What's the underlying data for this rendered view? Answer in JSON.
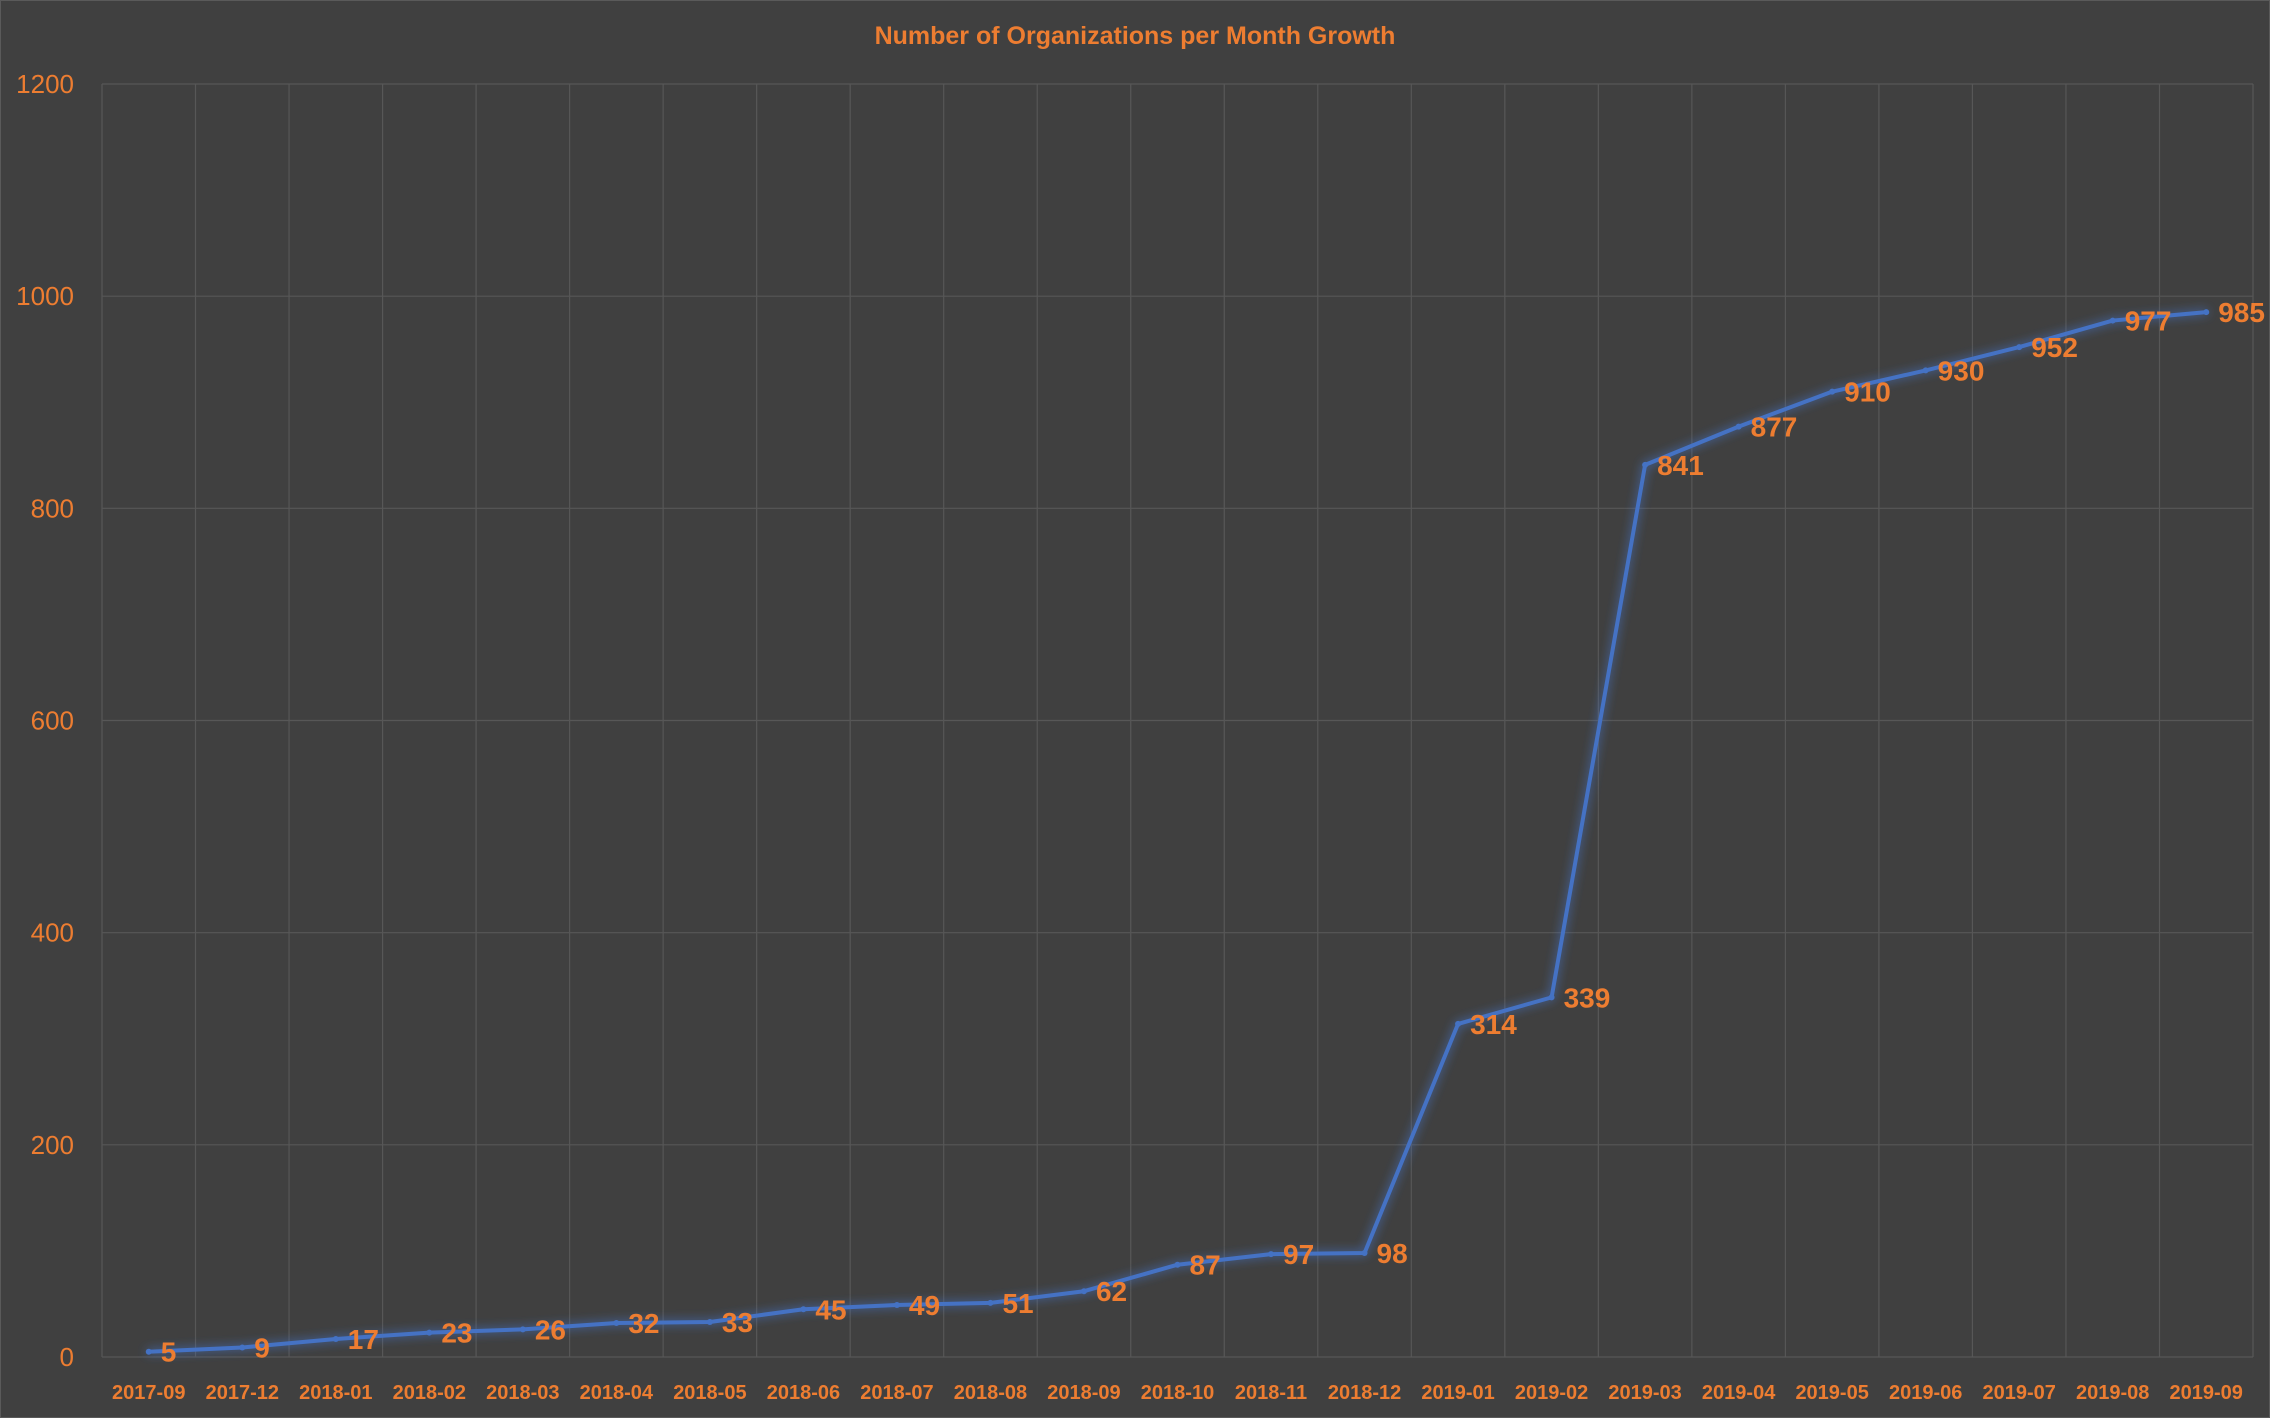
{
  "chart_data": {
    "type": "line",
    "title": "Number of Organizations per Month Growth",
    "xlabel": "",
    "ylabel": "",
    "categories": [
      "2017-09",
      "2017-12",
      "2018-01",
      "2018-02",
      "2018-03",
      "2018-04",
      "2018-05",
      "2018-06",
      "2018-07",
      "2018-08",
      "2018-09",
      "2018-10",
      "2018-11",
      "2018-12",
      "2019-01",
      "2019-02",
      "2019-03",
      "2019-04",
      "2019-05",
      "2019-06",
      "2019-07",
      "2019-08",
      "2019-09"
    ],
    "series": [
      {
        "values": [
          5,
          9,
          17,
          23,
          26,
          32,
          33,
          45,
          49,
          51,
          62,
          87,
          97,
          98,
          314,
          339,
          841,
          877,
          910,
          930,
          952,
          977,
          985
        ]
      }
    ],
    "ylim": [
      0,
      1200
    ],
    "yticks": [
      "0",
      "200",
      "400",
      "600",
      "800",
      "1000",
      "1200"
    ],
    "grid": true,
    "legend": "none",
    "colors": {
      "line": "#4472c4",
      "text": "#ed7d31",
      "background": "#404040",
      "grid": "#575757"
    }
  }
}
